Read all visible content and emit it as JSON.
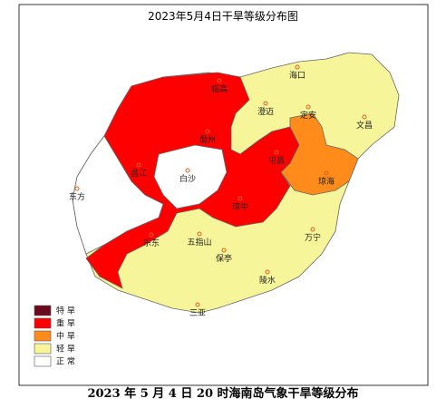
{
  "title": "2023年5月4日干旱等级分布图",
  "cities": [
    "海口",
    "临高",
    "澄迈",
    "定安",
    "文昌",
    "儋州",
    "屯昌",
    "昌江",
    "白沙",
    "琼海",
    "东方",
    "琼中",
    "万宁",
    "五指山",
    "乐东",
    "保亭",
    "陵水",
    "三亚"
  ],
  "legend": [
    {
      "label": "特 旱",
      "color": "#6b0a1f"
    },
    {
      "label": "重 旱",
      "color": "#ff0000"
    },
    {
      "label": "中 旱",
      "color": "#ff8c1a"
    },
    {
      "label": "轻 旱",
      "color": "#f7f59a"
    },
    {
      "label": "正 常",
      "color": "#ffffff"
    }
  ],
  "caption": "2023 年 5 月 4 日 20 时海南岛气象干旱等级分布"
}
